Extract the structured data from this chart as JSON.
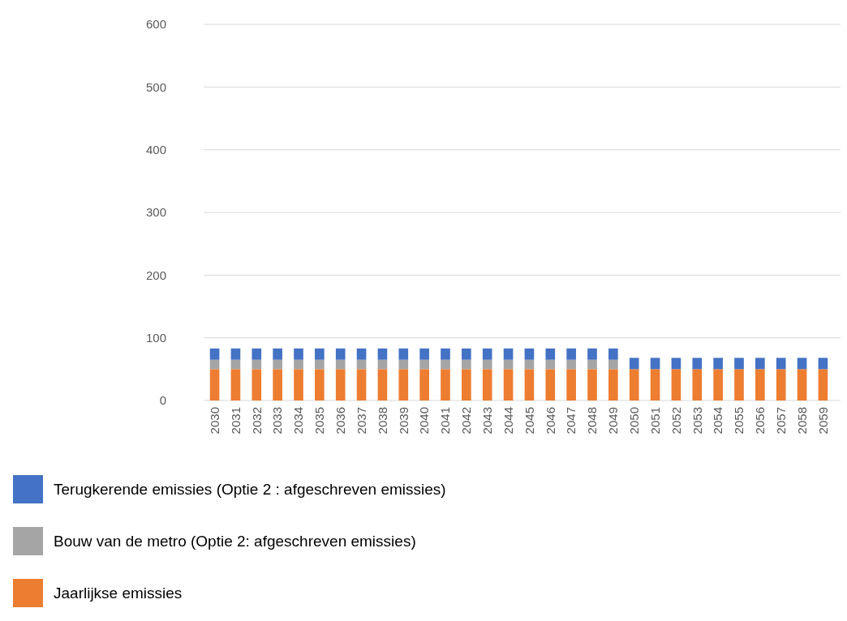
{
  "chart_data": {
    "type": "bar",
    "stacked": true,
    "categories": [
      "2030",
      "2031",
      "2032",
      "2033",
      "2034",
      "2035",
      "2036",
      "2037",
      "2038",
      "2039",
      "2040",
      "2041",
      "2042",
      "2043",
      "2044",
      "2045",
      "2046",
      "2047",
      "2048",
      "2049",
      "2050",
      "2051",
      "2052",
      "2053",
      "2054",
      "2055",
      "2056",
      "2057",
      "2058",
      "2059"
    ],
    "series": [
      {
        "name": "Jaarlijkse emissies",
        "color": "#ed7d31",
        "values": [
          50,
          50,
          50,
          50,
          50,
          50,
          50,
          50,
          50,
          50,
          50,
          50,
          50,
          50,
          50,
          50,
          50,
          50,
          50,
          50,
          50,
          50,
          50,
          50,
          50,
          50,
          50,
          50,
          50,
          50
        ]
      },
      {
        "name": "Bouw van de metro (Optie 2: afgeschreven emissies)",
        "color": "#a5a5a5",
        "values": [
          15,
          15,
          15,
          15,
          15,
          15,
          15,
          15,
          15,
          15,
          15,
          15,
          15,
          15,
          15,
          15,
          15,
          15,
          15,
          15,
          null,
          null,
          null,
          null,
          null,
          null,
          null,
          null,
          null,
          null
        ]
      },
      {
        "name": "Terugkerende emissies (Optie 2 : afgeschreven emissies)",
        "color": "#4472c4",
        "values": [
          18,
          18,
          18,
          18,
          18,
          18,
          18,
          18,
          18,
          18,
          18,
          18,
          18,
          18,
          18,
          18,
          18,
          18,
          18,
          18,
          18,
          18,
          18,
          18,
          18,
          18,
          18,
          18,
          18,
          18
        ]
      }
    ],
    "ylim": [
      0,
      600
    ],
    "yticks": [
      0,
      100,
      200,
      300,
      400,
      500,
      600
    ],
    "grid": "y",
    "legend": "bottom"
  }
}
